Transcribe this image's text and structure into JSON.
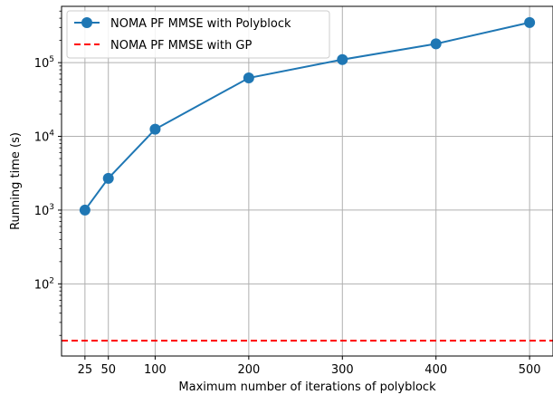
{
  "chart_data": {
    "type": "line",
    "xlabel": "Maximum number of iterations of polyblock",
    "ylabel": "Running time (s)",
    "x_ticks": [
      25,
      50,
      100,
      200,
      300,
      400,
      500
    ],
    "y_scale": "log",
    "y_ticks": [
      {
        "value": 100,
        "base": "10",
        "exp": "2"
      },
      {
        "value": 1000,
        "base": "10",
        "exp": "3"
      },
      {
        "value": 10000,
        "base": "10",
        "exp": "4"
      },
      {
        "value": 100000,
        "base": "10",
        "exp": "5"
      }
    ],
    "xlim": [
      0,
      525
    ],
    "ylim": [
      10.5,
      580000
    ],
    "grid": true,
    "legend_position": "top-left",
    "series": [
      {
        "name": "NOMA PF MMSE with Polyblock",
        "style": "solid-line-circle-markers",
        "color": "#1f77b4",
        "x": [
          25,
          50,
          100,
          200,
          300,
          400,
          500
        ],
        "y": [
          1000,
          2700,
          12500,
          62000,
          110000,
          180000,
          350000
        ]
      },
      {
        "name": "NOMA PF MMSE with GP",
        "style": "dashed-horizontal-line",
        "color": "#ff0000",
        "y_constant": 17
      }
    ]
  }
}
